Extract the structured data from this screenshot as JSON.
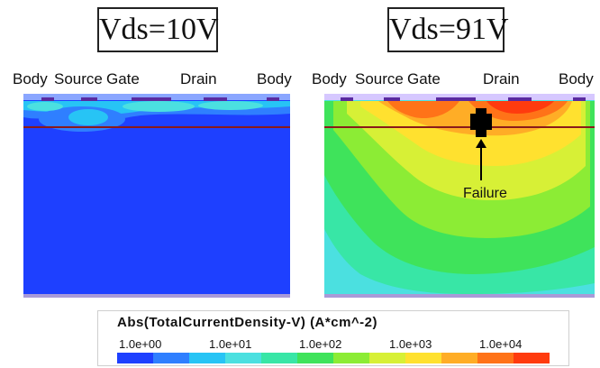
{
  "left_panel": {
    "title": "Vds=10V",
    "labels": {
      "body_left": "Body",
      "source": "Source",
      "gate": "Gate",
      "drain": "Drain",
      "body_right": "Body"
    }
  },
  "right_panel": {
    "title": "Vds=91V",
    "labels": {
      "body_left": "Body",
      "source": "Source",
      "gate": "Gate",
      "drain": "Drain",
      "body_right": "Body"
    },
    "annotation": "Failure"
  },
  "legend": {
    "title": "Abs(TotalCurrentDensity-V) (A*cm^-2)",
    "ticks": [
      "1.0e+00",
      "1.0e+01",
      "1.0e+02",
      "1.0e+03",
      "1.0e+04"
    ],
    "colors": [
      "#1e40ff",
      "#2f7fff",
      "#27c4f5",
      "#4be0e0",
      "#38e6a6",
      "#3fe35b",
      "#8cec35",
      "#d7f036",
      "#ffe12f",
      "#ffad26",
      "#ff7318",
      "#ff3b0e"
    ]
  }
}
